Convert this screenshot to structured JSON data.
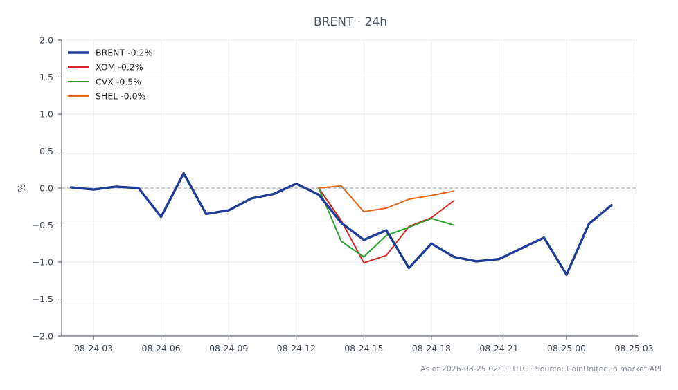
{
  "chart_data": {
    "type": "line",
    "title": "BRENT · 24h",
    "ylabel": "%",
    "xlabel": "",
    "ylim": [
      -2.0,
      2.0
    ],
    "yticks": [
      2.0,
      1.5,
      1.0,
      0.5,
      0.0,
      -0.5,
      -1.0,
      -1.5,
      -2.0
    ],
    "ytick_labels": [
      "2.0",
      "1.5",
      "1.0",
      "0.5",
      "0.0",
      "−0.5",
      "−1.0",
      "−1.5",
      "−2.0"
    ],
    "xlim": [
      "2026-08-24 01:35",
      "2026-08-25 03:10"
    ],
    "xticks": [
      "2026-08-24 03:00",
      "2026-08-24 06:00",
      "2026-08-24 09:00",
      "2026-08-24 12:00",
      "2026-08-24 15:00",
      "2026-08-24 18:00",
      "2026-08-24 21:00",
      "2026-08-25 00:00",
      "2026-08-25 03:00"
    ],
    "xtick_labels": [
      "08-24 03",
      "08-24 06",
      "08-24 09",
      "08-24 12",
      "08-24 15",
      "08-24 18",
      "08-24 21",
      "08-25 00",
      "08-25 03"
    ],
    "grid": true,
    "zero_line": true,
    "legend_position": "top-left",
    "series": [
      {
        "name": "BRENT -0.2%",
        "color": "#1f3c96",
        "emphasis": true,
        "x": [
          "2026-08-24 02:00",
          "2026-08-24 03:00",
          "2026-08-24 04:00",
          "2026-08-24 05:00",
          "2026-08-24 06:00",
          "2026-08-24 07:00",
          "2026-08-24 08:00",
          "2026-08-24 09:00",
          "2026-08-24 10:00",
          "2026-08-24 11:00",
          "2026-08-24 12:00",
          "2026-08-24 13:00",
          "2026-08-24 14:00",
          "2026-08-24 15:00",
          "2026-08-24 16:00",
          "2026-08-24 17:00",
          "2026-08-24 18:00",
          "2026-08-24 19:00",
          "2026-08-24 20:00",
          "2026-08-24 21:00",
          "2026-08-24 23:00",
          "2026-08-25 00:00",
          "2026-08-25 01:00",
          "2026-08-25 02:00"
        ],
        "y": [
          0.01,
          -0.02,
          0.02,
          0.0,
          -0.39,
          0.2,
          -0.35,
          -0.3,
          -0.14,
          -0.08,
          0.06,
          -0.09,
          -0.47,
          -0.7,
          -0.57,
          -1.08,
          -0.75,
          -0.93,
          -0.99,
          -0.96,
          -0.67,
          -1.17,
          -0.48,
          -0.23
        ]
      },
      {
        "name": "XOM -0.2%",
        "color": "#d62728",
        "x": [
          "2026-08-24 13:00",
          "2026-08-24 14:00",
          "2026-08-24 15:00",
          "2026-08-24 16:00",
          "2026-08-24 17:00",
          "2026-08-24 18:00",
          "2026-08-24 19:00"
        ],
        "y": [
          0.0,
          -0.44,
          -1.01,
          -0.91,
          -0.52,
          -0.4,
          -0.17
        ]
      },
      {
        "name": "CVX -0.5%",
        "color": "#2ca02c",
        "x": [
          "2026-08-24 13:00",
          "2026-08-24 14:00",
          "2026-08-24 15:00",
          "2026-08-24 16:00",
          "2026-08-24 17:00",
          "2026-08-24 18:00",
          "2026-08-24 19:00"
        ],
        "y": [
          0.0,
          -0.72,
          -0.93,
          -0.64,
          -0.53,
          -0.41,
          -0.5
        ]
      },
      {
        "name": "SHEL -0.0%",
        "color": "#e0661a",
        "x": [
          "2026-08-24 13:00",
          "2026-08-24 14:00",
          "2026-08-24 15:00",
          "2026-08-24 16:00",
          "2026-08-24 17:00",
          "2026-08-24 18:00",
          "2026-08-24 19:00"
        ],
        "y": [
          0.0,
          0.03,
          -0.32,
          -0.27,
          -0.15,
          -0.1,
          -0.04
        ]
      }
    ]
  },
  "footer": "As of 2026-08-25 02:11 UTC · Source: CoinUnited.io market API"
}
